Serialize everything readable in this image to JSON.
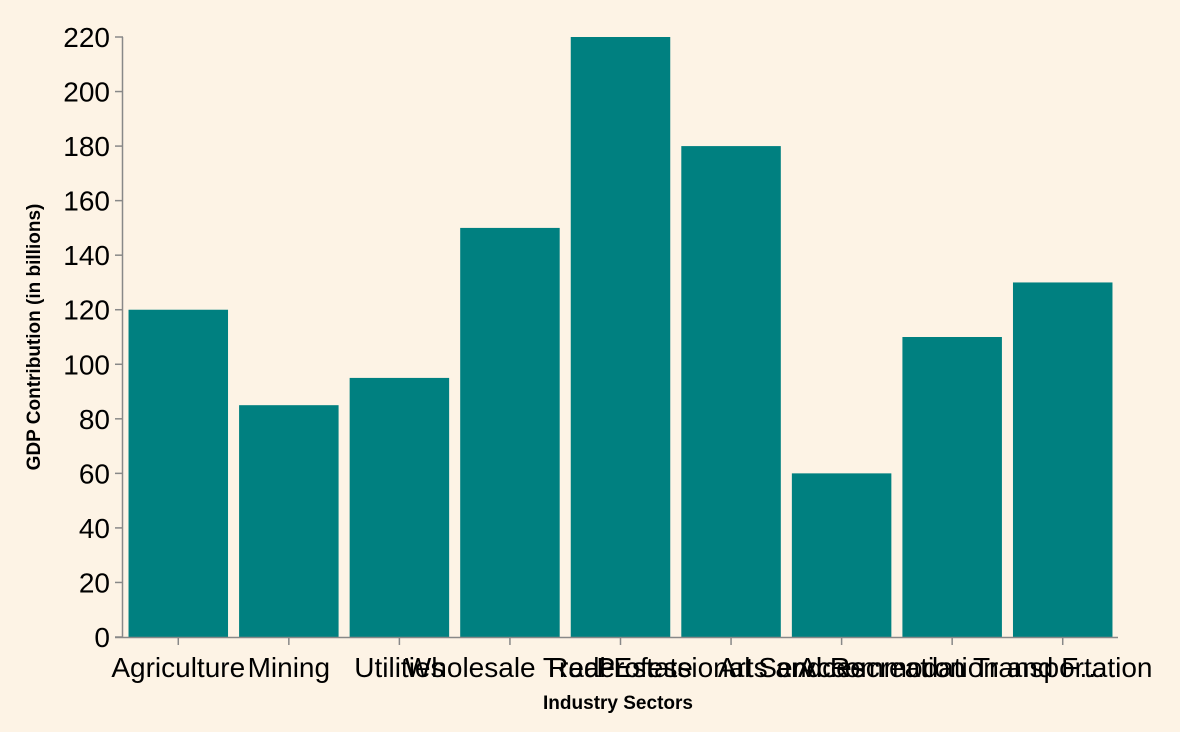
{
  "chart_data": {
    "type": "bar",
    "xlabel": "Industry Sectors",
    "ylabel": "GDP Contribution (in billions)",
    "categories": [
      "Agriculture",
      "Mining",
      "Utilities",
      "Wholesale Trade",
      "Real Estate",
      "Professional Services",
      "Arts and Recreation",
      "Accommodation and F…",
      "Transportation"
    ],
    "values": [
      120,
      85,
      95,
      150,
      220,
      180,
      60,
      110,
      130
    ],
    "ylim": [
      0,
      220
    ],
    "yticks": [
      0,
      20,
      40,
      60,
      80,
      100,
      120,
      140,
      160,
      180,
      200,
      220
    ],
    "grid": false,
    "bar_color": "#008080",
    "background": "#fdf3e5"
  }
}
